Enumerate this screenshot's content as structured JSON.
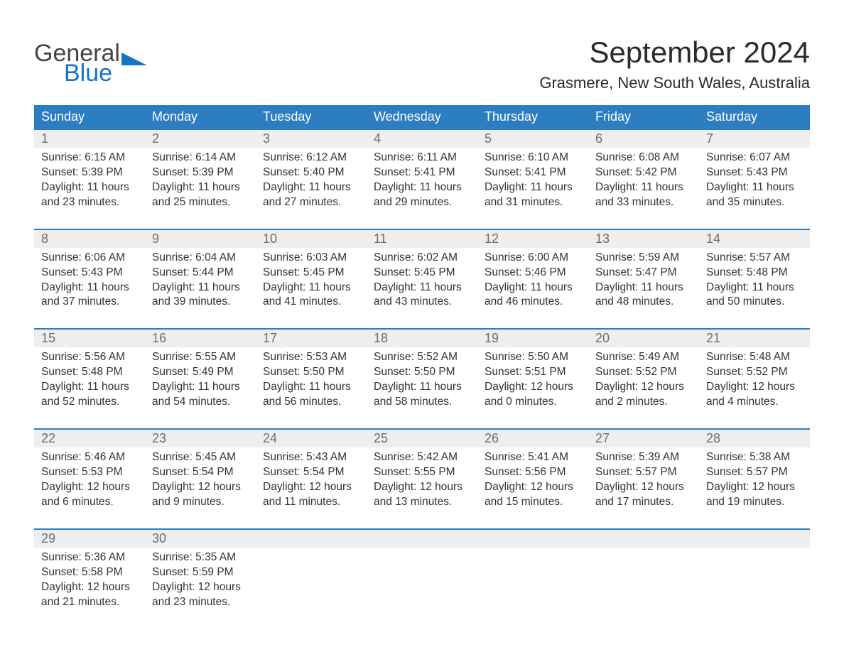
{
  "logo": {
    "word1": "General",
    "word2": "Blue",
    "mark_color": "#1473c4"
  },
  "title": "September 2024",
  "location": "Grasmere, New South Wales, Australia",
  "colors": {
    "header_blue": "#2d7dc3",
    "date_bg": "#eeeeee",
    "text_dark": "#333333",
    "text_gray": "#6e6e6e",
    "page_bg": "#ffffff"
  },
  "weekdays": [
    "Sunday",
    "Monday",
    "Tuesday",
    "Wednesday",
    "Thursday",
    "Friday",
    "Saturday"
  ],
  "weeks": [
    [
      {
        "d": "1",
        "sr": "6:15 AM",
        "ss": "5:39 PM",
        "dl": "11 hours and 23 minutes."
      },
      {
        "d": "2",
        "sr": "6:14 AM",
        "ss": "5:39 PM",
        "dl": "11 hours and 25 minutes."
      },
      {
        "d": "3",
        "sr": "6:12 AM",
        "ss": "5:40 PM",
        "dl": "11 hours and 27 minutes."
      },
      {
        "d": "4",
        "sr": "6:11 AM",
        "ss": "5:41 PM",
        "dl": "11 hours and 29 minutes."
      },
      {
        "d": "5",
        "sr": "6:10 AM",
        "ss": "5:41 PM",
        "dl": "11 hours and 31 minutes."
      },
      {
        "d": "6",
        "sr": "6:08 AM",
        "ss": "5:42 PM",
        "dl": "11 hours and 33 minutes."
      },
      {
        "d": "7",
        "sr": "6:07 AM",
        "ss": "5:43 PM",
        "dl": "11 hours and 35 minutes."
      }
    ],
    [
      {
        "d": "8",
        "sr": "6:06 AM",
        "ss": "5:43 PM",
        "dl": "11 hours and 37 minutes."
      },
      {
        "d": "9",
        "sr": "6:04 AM",
        "ss": "5:44 PM",
        "dl": "11 hours and 39 minutes."
      },
      {
        "d": "10",
        "sr": "6:03 AM",
        "ss": "5:45 PM",
        "dl": "11 hours and 41 minutes."
      },
      {
        "d": "11",
        "sr": "6:02 AM",
        "ss": "5:45 PM",
        "dl": "11 hours and 43 minutes."
      },
      {
        "d": "12",
        "sr": "6:00 AM",
        "ss": "5:46 PM",
        "dl": "11 hours and 46 minutes."
      },
      {
        "d": "13",
        "sr": "5:59 AM",
        "ss": "5:47 PM",
        "dl": "11 hours and 48 minutes."
      },
      {
        "d": "14",
        "sr": "5:57 AM",
        "ss": "5:48 PM",
        "dl": "11 hours and 50 minutes."
      }
    ],
    [
      {
        "d": "15",
        "sr": "5:56 AM",
        "ss": "5:48 PM",
        "dl": "11 hours and 52 minutes."
      },
      {
        "d": "16",
        "sr": "5:55 AM",
        "ss": "5:49 PM",
        "dl": "11 hours and 54 minutes."
      },
      {
        "d": "17",
        "sr": "5:53 AM",
        "ss": "5:50 PM",
        "dl": "11 hours and 56 minutes."
      },
      {
        "d": "18",
        "sr": "5:52 AM",
        "ss": "5:50 PM",
        "dl": "11 hours and 58 minutes."
      },
      {
        "d": "19",
        "sr": "5:50 AM",
        "ss": "5:51 PM",
        "dl": "12 hours and 0 minutes."
      },
      {
        "d": "20",
        "sr": "5:49 AM",
        "ss": "5:52 PM",
        "dl": "12 hours and 2 minutes."
      },
      {
        "d": "21",
        "sr": "5:48 AM",
        "ss": "5:52 PM",
        "dl": "12 hours and 4 minutes."
      }
    ],
    [
      {
        "d": "22",
        "sr": "5:46 AM",
        "ss": "5:53 PM",
        "dl": "12 hours and 6 minutes."
      },
      {
        "d": "23",
        "sr": "5:45 AM",
        "ss": "5:54 PM",
        "dl": "12 hours and 9 minutes."
      },
      {
        "d": "24",
        "sr": "5:43 AM",
        "ss": "5:54 PM",
        "dl": "12 hours and 11 minutes."
      },
      {
        "d": "25",
        "sr": "5:42 AM",
        "ss": "5:55 PM",
        "dl": "12 hours and 13 minutes."
      },
      {
        "d": "26",
        "sr": "5:41 AM",
        "ss": "5:56 PM",
        "dl": "12 hours and 15 minutes."
      },
      {
        "d": "27",
        "sr": "5:39 AM",
        "ss": "5:57 PM",
        "dl": "12 hours and 17 minutes."
      },
      {
        "d": "28",
        "sr": "5:38 AM",
        "ss": "5:57 PM",
        "dl": "12 hours and 19 minutes."
      }
    ],
    [
      {
        "d": "29",
        "sr": "5:36 AM",
        "ss": "5:58 PM",
        "dl": "12 hours and 21 minutes."
      },
      {
        "d": "30",
        "sr": "5:35 AM",
        "ss": "5:59 PM",
        "dl": "12 hours and 23 minutes."
      },
      null,
      null,
      null,
      null,
      null
    ]
  ],
  "labels": {
    "sunrise_prefix": "Sunrise: ",
    "sunset_prefix": "Sunset: ",
    "daylight_prefix": "Daylight: "
  }
}
